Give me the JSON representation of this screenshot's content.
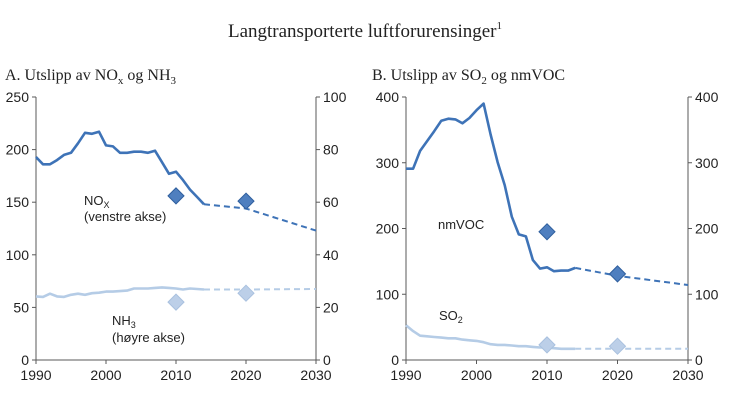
{
  "figure": {
    "title": "Langtransporterte luftforurensinger",
    "title_sup": "1"
  },
  "colors": {
    "dark": "#3e73b7",
    "light": "#b5cce6",
    "diamond_dark": "#4f7fbf",
    "diamond_light": "#bccfe8",
    "axis": "#595959",
    "text": "#222222"
  },
  "chart_data": [
    {
      "id": "A",
      "type": "line",
      "title_prefix": "A.  Utslipp av NO",
      "title_sub1": "x",
      "title_mid": " og NH",
      "title_sub2": "3",
      "x_ticks": [
        "1990",
        "2000",
        "2010",
        "2020",
        "2030"
      ],
      "xlim": [
        1990,
        2030
      ],
      "ylim_left": [
        0,
        250
      ],
      "y_ticks_left": [
        "0",
        "50",
        "100",
        "150",
        "200",
        "250"
      ],
      "ylim_right": [
        0,
        100
      ],
      "y_ticks_right": [
        "0",
        "20",
        "40",
        "60",
        "80",
        "100"
      ],
      "series": [
        {
          "name": "NOx",
          "axis": "left",
          "color": "dark",
          "x": [
            1990,
            1991,
            1992,
            1993,
            1994,
            1995,
            1996,
            1997,
            1998,
            1999,
            2000,
            2001,
            2002,
            2003,
            2004,
            2005,
            2006,
            2007,
            2008,
            2009,
            2010,
            2011,
            2012,
            2013,
            2014
          ],
          "values": [
            193,
            186,
            186,
            190,
            195,
            197,
            206,
            216,
            215,
            217,
            204,
            203,
            197,
            197,
            198,
            198,
            197,
            199,
            188,
            177,
            179,
            171,
            162,
            155,
            148
          ],
          "projection_x": [
            2014,
            2020,
            2030
          ],
          "projection_values": [
            148,
            144,
            123
          ],
          "target_x": 2010,
          "target_value": 156,
          "projection_marker_x": 2020,
          "projection_marker_value": 151
        },
        {
          "name": "NH3",
          "axis": "right",
          "color": "light",
          "x": [
            1990,
            1991,
            1992,
            1993,
            1994,
            1995,
            1996,
            1997,
            1998,
            1999,
            2000,
            2001,
            2002,
            2003,
            2004,
            2005,
            2006,
            2007,
            2008,
            2009,
            2010,
            2011,
            2012,
            2013,
            2014
          ],
          "values": [
            24.2,
            24.0,
            25.2,
            24.2,
            24.0,
            24.8,
            25.2,
            24.8,
            25.4,
            25.6,
            26.0,
            26.0,
            26.2,
            26.4,
            27.2,
            27.2,
            27.2,
            27.4,
            27.6,
            27.4,
            27.2,
            26.8,
            27.2,
            27.0,
            26.8
          ],
          "projection_x": [
            2014,
            2020,
            2030
          ],
          "projection_values": [
            26.8,
            26.8,
            27.0
          ],
          "target_x": 2010,
          "target_value": 22.0,
          "projection_marker_x": 2020,
          "projection_marker_value": 25.4
        }
      ],
      "annotations": {
        "nox_label": "NO",
        "nox_sub": "X",
        "nox_axis_note": "(venstre akse)",
        "nh3_label": "NH",
        "nh3_sub": "3",
        "nh3_axis_note": "(høyre akse)"
      }
    },
    {
      "id": "B",
      "type": "line",
      "title_prefix": "B.  Utslipp av SO",
      "title_sub1": "2",
      "title_mid": " og nmVOC",
      "title_sub2": "",
      "x_ticks": [
        "1990",
        "2000",
        "2010",
        "2020",
        "2030"
      ],
      "xlim": [
        1990,
        2030
      ],
      "ylim_left": [
        0,
        400
      ],
      "y_ticks_left": [
        "0",
        "100",
        "200",
        "300",
        "400"
      ],
      "ylim_right": [
        0,
        400
      ],
      "y_ticks_right": [
        "0",
        "100",
        "200",
        "300",
        "400"
      ],
      "series": [
        {
          "name": "nmVOC",
          "axis": "left",
          "color": "dark",
          "x": [
            1990,
            1991,
            1992,
            1993,
            1994,
            1995,
            1996,
            1997,
            1998,
            1999,
            2000,
            2001,
            2002,
            2003,
            2004,
            2005,
            2006,
            2007,
            2008,
            2009,
            2010,
            2011,
            2012,
            2013,
            2014
          ],
          "values": [
            291,
            291,
            318,
            333,
            348,
            364,
            367,
            366,
            360,
            368,
            380,
            390,
            343,
            301,
            266,
            218,
            191,
            188,
            152,
            139,
            141,
            135,
            136,
            136,
            140
          ],
          "projection_x": [
            2014,
            2020,
            2030
          ],
          "projection_values": [
            140,
            128,
            114
          ],
          "target_x": 2010,
          "target_value": 195,
          "projection_marker_x": 2020,
          "projection_marker_value": 131
        },
        {
          "name": "SO2",
          "axis": "left",
          "color": "light",
          "x": [
            1990,
            1991,
            1992,
            1993,
            1994,
            1995,
            1996,
            1997,
            1998,
            1999,
            2000,
            2001,
            2002,
            2003,
            2004,
            2005,
            2006,
            2007,
            2008,
            2009,
            2010,
            2011,
            2012,
            2013,
            2014
          ],
          "values": [
            53,
            44,
            37,
            36,
            35,
            34,
            33,
            33,
            31,
            30,
            29,
            27,
            24,
            23,
            23,
            22,
            21,
            21,
            20,
            19,
            19,
            18,
            17,
            17,
            17
          ],
          "projection_x": [
            2014,
            2020,
            2030
          ],
          "projection_values": [
            17,
            17,
            17
          ],
          "target_x": 2010,
          "target_value": 23,
          "projection_marker_x": 2020,
          "projection_marker_value": 21
        }
      ],
      "annotations": {
        "nmvoc_label": "nmVOC",
        "so2_label": "SO",
        "so2_sub": "2"
      }
    }
  ]
}
